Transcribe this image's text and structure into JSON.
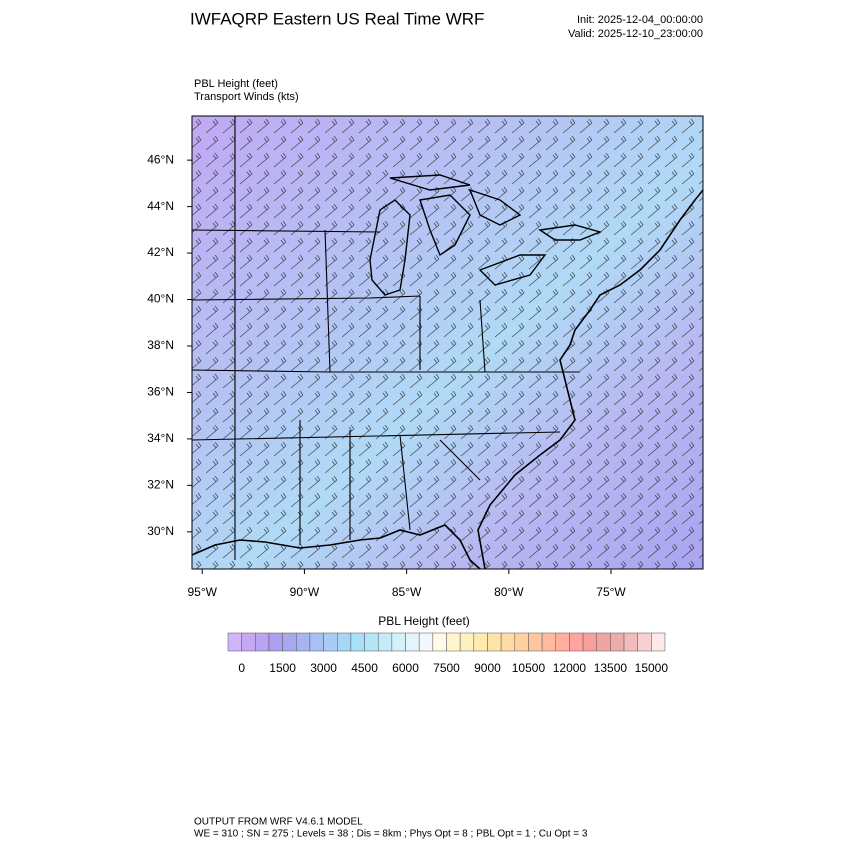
{
  "header": {
    "title": "IWFAQRP Eastern US Real Time WRF",
    "init": "Init: 2025-12-04_00:00:00",
    "valid": "Valid: 2025-12-10_23:00:00"
  },
  "chart_data": {
    "type": "map",
    "field_label": "PBL Height   (feet)",
    "wind_label": "Transport Winds   (kts)",
    "xlim": [
      -95.5,
      -70.5
    ],
    "ylim": [
      28.4,
      47.9
    ],
    "xticks": [
      {
        "value": -95,
        "label": "95°W"
      },
      {
        "value": -90,
        "label": "90°W"
      },
      {
        "value": -85,
        "label": "85°W"
      },
      {
        "value": -80,
        "label": "80°W"
      },
      {
        "value": -75,
        "label": "75°W"
      }
    ],
    "yticks": [
      {
        "value": 30,
        "label": "30°N"
      },
      {
        "value": 32,
        "label": "32°N"
      },
      {
        "value": 34,
        "label": "34°N"
      },
      {
        "value": 36,
        "label": "36°N"
      },
      {
        "value": 38,
        "label": "38°N"
      },
      {
        "value": 40,
        "label": "40°N"
      },
      {
        "value": 42,
        "label": "42°N"
      },
      {
        "value": 44,
        "label": "44°N"
      },
      {
        "value": 46,
        "label": "46°N"
      }
    ],
    "colorbar": {
      "title": "PBL Height  (feet)",
      "ticks": [
        0,
        1500,
        3000,
        4500,
        6000,
        7500,
        9000,
        10500,
        12000,
        13500,
        15000
      ],
      "colors": [
        "#d2b4f8",
        "#c4a8f4",
        "#b8a4f2",
        "#aca0f0",
        "#a8a8f0",
        "#a8b4f2",
        "#a8c0f4",
        "#a8ccf6",
        "#a8d6f6",
        "#a8e0f8",
        "#b4e6f8",
        "#c4ecf8",
        "#d4f0f8",
        "#e4f4fa",
        "#f4f8fc",
        "#fffbe8",
        "#fff6d0",
        "#fff0c0",
        "#ffeab0",
        "#ffe4a8",
        "#ffdaa4",
        "#ffd0a0",
        "#ffc6a0",
        "#ffbaa0",
        "#ffaea0",
        "#ffa4a0",
        "#f8a0a0",
        "#f0a4a4",
        "#eaacac",
        "#f0bcbc",
        "#f8d0d0",
        "#ffe8e8"
      ]
    }
  },
  "footer": {
    "line1": "OUTPUT FROM WRF V4.6.1 MODEL",
    "line2": "WE = 310 ; SN = 275 ; Levels = 38 ; Dis = 8km ; Phys Opt = 8 ; PBL Opt = 1 ; Cu Opt = 3"
  }
}
